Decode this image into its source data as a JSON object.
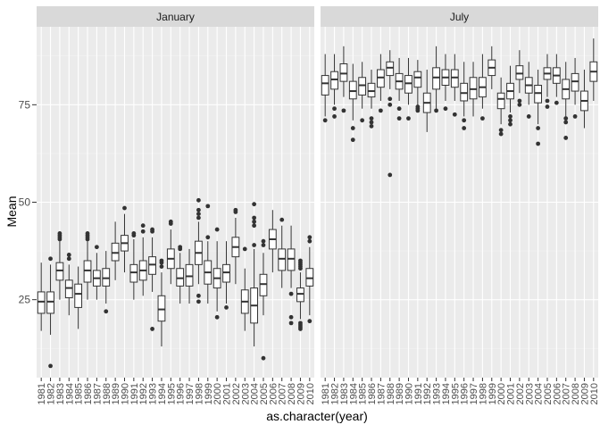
{
  "chart_data": {
    "type": "boxplot",
    "xlabel": "as.character(year)",
    "ylabel": "Mean",
    "ylim": [
      5,
      95
    ],
    "yticks": [
      25,
      50,
      75
    ],
    "grid": true,
    "categories": [
      "1981",
      "1982",
      "1983",
      "1984",
      "1985",
      "1986",
      "1987",
      "1988",
      "1989",
      "1990",
      "1991",
      "1992",
      "1993",
      "1994",
      "1995",
      "1996",
      "1997",
      "1998",
      "1999",
      "2000",
      "2001",
      "2002",
      "2003",
      "2004",
      "2005",
      "2006",
      "2007",
      "2008",
      "2009",
      "2010"
    ],
    "facets": [
      {
        "label": "January",
        "boxes": [
          {
            "year": "1981",
            "min": 17,
            "q1": 21.5,
            "median": 24.5,
            "q3": 27,
            "max": 34.5,
            "outliers": []
          },
          {
            "year": "1982",
            "min": 16,
            "q1": 21.5,
            "median": 24.5,
            "q3": 27,
            "max": 34,
            "outliers": [
              8,
              35.5
            ]
          },
          {
            "year": "1983",
            "min": 25,
            "q1": 30,
            "median": 32.5,
            "q3": 34.5,
            "max": 40,
            "outliers": [
              40.5,
              41,
              41.5,
              42
            ]
          },
          {
            "year": "1984",
            "min": 21,
            "q1": 25.5,
            "median": 28,
            "q3": 30,
            "max": 34,
            "outliers": [
              35.5,
              36.5
            ]
          },
          {
            "year": "1985",
            "min": 17.5,
            "q1": 23,
            "median": 26.5,
            "q3": 29,
            "max": 33.5,
            "outliers": []
          },
          {
            "year": "1986",
            "min": 25,
            "q1": 29.5,
            "median": 32.5,
            "q3": 35,
            "max": 40,
            "outliers": [
              40.5,
              41,
              41.5,
              42
            ]
          },
          {
            "year": "1987",
            "min": 25,
            "q1": 28.5,
            "median": 30.5,
            "q3": 32.5,
            "max": 37,
            "outliers": [
              38.5
            ]
          },
          {
            "year": "1988",
            "min": 24,
            "q1": 28.5,
            "median": 30.5,
            "q3": 33,
            "max": 37.5,
            "outliers": [
              22
            ]
          },
          {
            "year": "1989",
            "min": 30,
            "q1": 35,
            "median": 37,
            "q3": 39.5,
            "max": 45,
            "outliers": []
          },
          {
            "year": "1990",
            "min": 32,
            "q1": 37.5,
            "median": 39.5,
            "q3": 41.5,
            "max": 47,
            "outliers": [
              48.5
            ]
          },
          {
            "year": "1991",
            "min": 25,
            "q1": 29.5,
            "median": 32,
            "q3": 34,
            "max": 40.5,
            "outliers": [
              41.5,
              42
            ]
          },
          {
            "year": "1992",
            "min": 26,
            "q1": 30,
            "median": 32.5,
            "q3": 35,
            "max": 41,
            "outliers": [
              42.5,
              44
            ]
          },
          {
            "year": "1993",
            "min": 27,
            "q1": 31.5,
            "median": 34,
            "q3": 36,
            "max": 41,
            "outliers": [
              17.5,
              42.5,
              43
            ]
          },
          {
            "year": "1994",
            "min": 13,
            "q1": 19.5,
            "median": 22.5,
            "q3": 26,
            "max": 32,
            "outliers": [
              33.5,
              34.5,
              35
            ]
          },
          {
            "year": "1995",
            "min": 29,
            "q1": 33,
            "median": 35.5,
            "q3": 38,
            "max": 43,
            "outliers": [
              44.5,
              45
            ]
          },
          {
            "year": "1996",
            "min": 24,
            "q1": 28.5,
            "median": 30.5,
            "q3": 33,
            "max": 37,
            "outliers": [
              38,
              38.5
            ]
          },
          {
            "year": "1997",
            "min": 24,
            "q1": 28.5,
            "median": 31,
            "q3": 34,
            "max": 38,
            "outliers": []
          },
          {
            "year": "1998",
            "min": 29,
            "q1": 34,
            "median": 37,
            "q3": 40,
            "max": 45,
            "outliers": [
              24.5,
              26,
              46,
              47,
              48,
              50.5
            ]
          },
          {
            "year": "1999",
            "min": 24,
            "q1": 29,
            "median": 32,
            "q3": 35,
            "max": 40,
            "outliers": [
              41,
              49
            ]
          },
          {
            "year": "2000",
            "min": 22,
            "q1": 28,
            "median": 30.5,
            "q3": 33,
            "max": 40,
            "outliers": [
              20.5,
              43
            ]
          },
          {
            "year": "2001",
            "min": 24,
            "q1": 29.5,
            "median": 32,
            "q3": 34,
            "max": 40,
            "outliers": [
              23
            ]
          },
          {
            "year": "2002",
            "min": 29,
            "q1": 36,
            "median": 38.5,
            "q3": 41,
            "max": 46,
            "outliers": [
              47.5,
              48
            ]
          },
          {
            "year": "2003",
            "min": 17,
            "q1": 21.5,
            "median": 24.5,
            "q3": 27.5,
            "max": 33,
            "outliers": [
              38
            ]
          },
          {
            "year": "2004",
            "min": 13,
            "q1": 19,
            "median": 23.5,
            "q3": 28,
            "max": 38,
            "outliers": [
              39,
              44,
              45,
              46,
              49.5
            ]
          },
          {
            "year": "2005",
            "min": 21,
            "q1": 26,
            "median": 29,
            "q3": 31.5,
            "max": 37,
            "outliers": [
              10,
              39,
              40
            ]
          },
          {
            "year": "2006",
            "min": 32,
            "q1": 38,
            "median": 40.5,
            "q3": 43,
            "max": 48,
            "outliers": []
          },
          {
            "year": "2007",
            "min": 28,
            "q1": 32.5,
            "median": 35.5,
            "q3": 38,
            "max": 44,
            "outliers": [
              45.5
            ]
          },
          {
            "year": "2008",
            "min": 28,
            "q1": 32.5,
            "median": 35.5,
            "q3": 38,
            "max": 44,
            "outliers": [
              19,
              20.5,
              26.5
            ]
          },
          {
            "year": "2009",
            "min": 20,
            "q1": 24.5,
            "median": 26.5,
            "q3": 28,
            "max": 32,
            "outliers": [
              17.5,
              18,
              18.5,
              19,
              33,
              33.5,
              34,
              34.5,
              35
            ]
          },
          {
            "year": "2010",
            "min": 21,
            "q1": 28.5,
            "median": 30.5,
            "q3": 33,
            "max": 38.5,
            "outliers": [
              19.5,
              40,
              41
            ]
          }
        ]
      },
      {
        "label": "July",
        "boxes": [
          {
            "year": "1981",
            "min": 72,
            "q1": 77.5,
            "median": 80.5,
            "q3": 82.5,
            "max": 88,
            "outliers": [
              71
            ]
          },
          {
            "year": "1982",
            "min": 75,
            "q1": 79,
            "median": 81.5,
            "q3": 83.5,
            "max": 88,
            "outliers": [
              72,
              74
            ]
          },
          {
            "year": "1983",
            "min": 77,
            "q1": 81,
            "median": 83,
            "q3": 85.5,
            "max": 90,
            "outliers": [
              73.5
            ]
          },
          {
            "year": "1984",
            "min": 71,
            "q1": 76.5,
            "median": 78.5,
            "q3": 81,
            "max": 85.5,
            "outliers": [
              66,
              69
            ]
          },
          {
            "year": "1985",
            "min": 74,
            "q1": 77.5,
            "median": 80,
            "q3": 82,
            "max": 86,
            "outliers": [
              71
            ]
          },
          {
            "year": "1986",
            "min": 74,
            "q1": 77,
            "median": 78.5,
            "q3": 80.5,
            "max": 84,
            "outliers": [
              69.5,
              70.5,
              71.5
            ]
          },
          {
            "year": "1987",
            "min": 76,
            "q1": 79.5,
            "median": 82,
            "q3": 84,
            "max": 88,
            "outliers": [
              73.5
            ]
          },
          {
            "year": "1988",
            "min": 79,
            "q1": 82.5,
            "median": 84.5,
            "q3": 86,
            "max": 89,
            "outliers": [
              57,
              75,
              76.5
            ]
          },
          {
            "year": "1989",
            "min": 76,
            "q1": 79,
            "median": 81,
            "q3": 83,
            "max": 87,
            "outliers": [
              71.5,
              74
            ]
          },
          {
            "year": "1990",
            "min": 75,
            "q1": 78,
            "median": 80.5,
            "q3": 82.5,
            "max": 87,
            "outliers": [
              71.5
            ]
          },
          {
            "year": "1991",
            "min": 75,
            "q1": 79.5,
            "median": 82,
            "q3": 83.5,
            "max": 86.5,
            "outliers": [
              73.5,
              74,
              74.5
            ]
          },
          {
            "year": "1992",
            "min": 68,
            "q1": 73,
            "median": 75.5,
            "q3": 78,
            "max": 84,
            "outliers": []
          },
          {
            "year": "1993",
            "min": 74,
            "q1": 79,
            "median": 82,
            "q3": 84.5,
            "max": 90,
            "outliers": [
              73.5
            ]
          },
          {
            "year": "1994",
            "min": 76,
            "q1": 80,
            "median": 82,
            "q3": 84,
            "max": 88,
            "outliers": [
              74
            ]
          },
          {
            "year": "1995",
            "min": 76,
            "q1": 79.5,
            "median": 82,
            "q3": 84,
            "max": 88,
            "outliers": [
              72.5
            ]
          },
          {
            "year": "1996",
            "min": 72,
            "q1": 76,
            "median": 78,
            "q3": 80.5,
            "max": 86,
            "outliers": [
              69,
              71
            ]
          },
          {
            "year": "1997",
            "min": 72,
            "q1": 76.5,
            "median": 79,
            "q3": 82,
            "max": 86,
            "outliers": []
          },
          {
            "year": "1998",
            "min": 74,
            "q1": 77,
            "median": 79.5,
            "q3": 82,
            "max": 88,
            "outliers": [
              71.5
            ]
          },
          {
            "year": "1999",
            "min": 79,
            "q1": 82.5,
            "median": 84.5,
            "q3": 86.5,
            "max": 90,
            "outliers": []
          },
          {
            "year": "2000",
            "min": 70,
            "q1": 74,
            "median": 76.5,
            "q3": 78,
            "max": 82,
            "outliers": [
              67.5,
              68.5
            ]
          },
          {
            "year": "2001",
            "min": 73,
            "q1": 76.5,
            "median": 78.5,
            "q3": 80.5,
            "max": 85,
            "outliers": [
              70,
              71,
              72
            ]
          },
          {
            "year": "2002",
            "min": 78,
            "q1": 81.5,
            "median": 83,
            "q3": 85,
            "max": 89,
            "outliers": [
              75,
              76
            ]
          },
          {
            "year": "2003",
            "min": 75,
            "q1": 78,
            "median": 80,
            "q3": 82,
            "max": 86,
            "outliers": [
              72
            ]
          },
          {
            "year": "2004",
            "min": 70,
            "q1": 75.5,
            "median": 78,
            "q3": 80,
            "max": 84,
            "outliers": [
              65,
              69
            ]
          },
          {
            "year": "2005",
            "min": 77,
            "q1": 81.5,
            "median": 83,
            "q3": 84.5,
            "max": 88,
            "outliers": [
              74.5,
              76
            ]
          },
          {
            "year": "2006",
            "min": 77,
            "q1": 80.5,
            "median": 82.5,
            "q3": 84.5,
            "max": 88,
            "outliers": [
              75.5
            ]
          },
          {
            "year": "2007",
            "min": 72,
            "q1": 76.5,
            "median": 79,
            "q3": 81.5,
            "max": 86,
            "outliers": [
              66.5,
              70.5,
              71.5
            ]
          },
          {
            "year": "2008",
            "min": 75,
            "q1": 78.5,
            "median": 81,
            "q3": 83,
            "max": 87,
            "outliers": [
              72
            ]
          },
          {
            "year": "2009",
            "min": 69,
            "q1": 73.5,
            "median": 76,
            "q3": 78.5,
            "max": 84,
            "outliers": []
          },
          {
            "year": "2010",
            "min": 76,
            "q1": 81,
            "median": 83.5,
            "q3": 86,
            "max": 92,
            "outliers": []
          }
        ]
      }
    ]
  },
  "colors": {
    "panel_bg": "#ebebeb",
    "grid_major": "#ffffff",
    "grid_minor": "#f4f4f4",
    "strip_bg": "#d9d9d9",
    "box_fill": "#ffffff",
    "box_line": "#333333",
    "axis_text": "#4d4d4d",
    "title_text": "#000000"
  }
}
